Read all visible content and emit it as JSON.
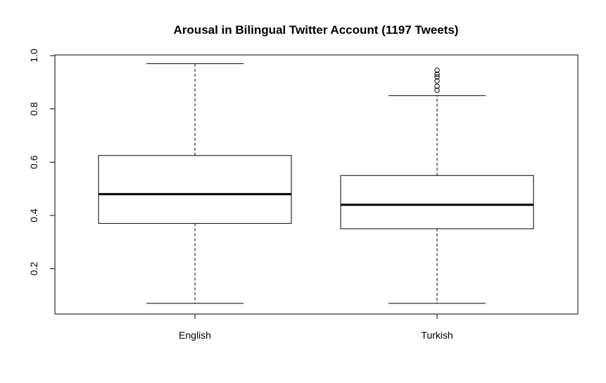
{
  "chart_data": {
    "type": "box",
    "title": "Arousal in Bilingual Twitter Account (1197 Tweets)",
    "xlabel": "",
    "ylabel": "",
    "ylim": [
      0.03,
      1.0
    ],
    "yticks": [
      0.2,
      0.4,
      0.6,
      0.8,
      1.0
    ],
    "ytick_labels": [
      "0.2",
      "0.4",
      "0.6",
      "0.8",
      "1.0"
    ],
    "categories": [
      "English",
      "Turkish"
    ],
    "boxes": [
      {
        "name": "English",
        "whisker_low": 0.07,
        "q1": 0.37,
        "median": 0.48,
        "q3": 0.625,
        "whisker_high": 0.97,
        "outliers": []
      },
      {
        "name": "Turkish",
        "whisker_low": 0.07,
        "q1": 0.35,
        "median": 0.44,
        "q3": 0.55,
        "whisker_high": 0.85,
        "outliers": [
          0.87,
          0.885,
          0.905,
          0.92,
          0.93,
          0.945
        ]
      }
    ],
    "grid": false,
    "legend": "none"
  }
}
